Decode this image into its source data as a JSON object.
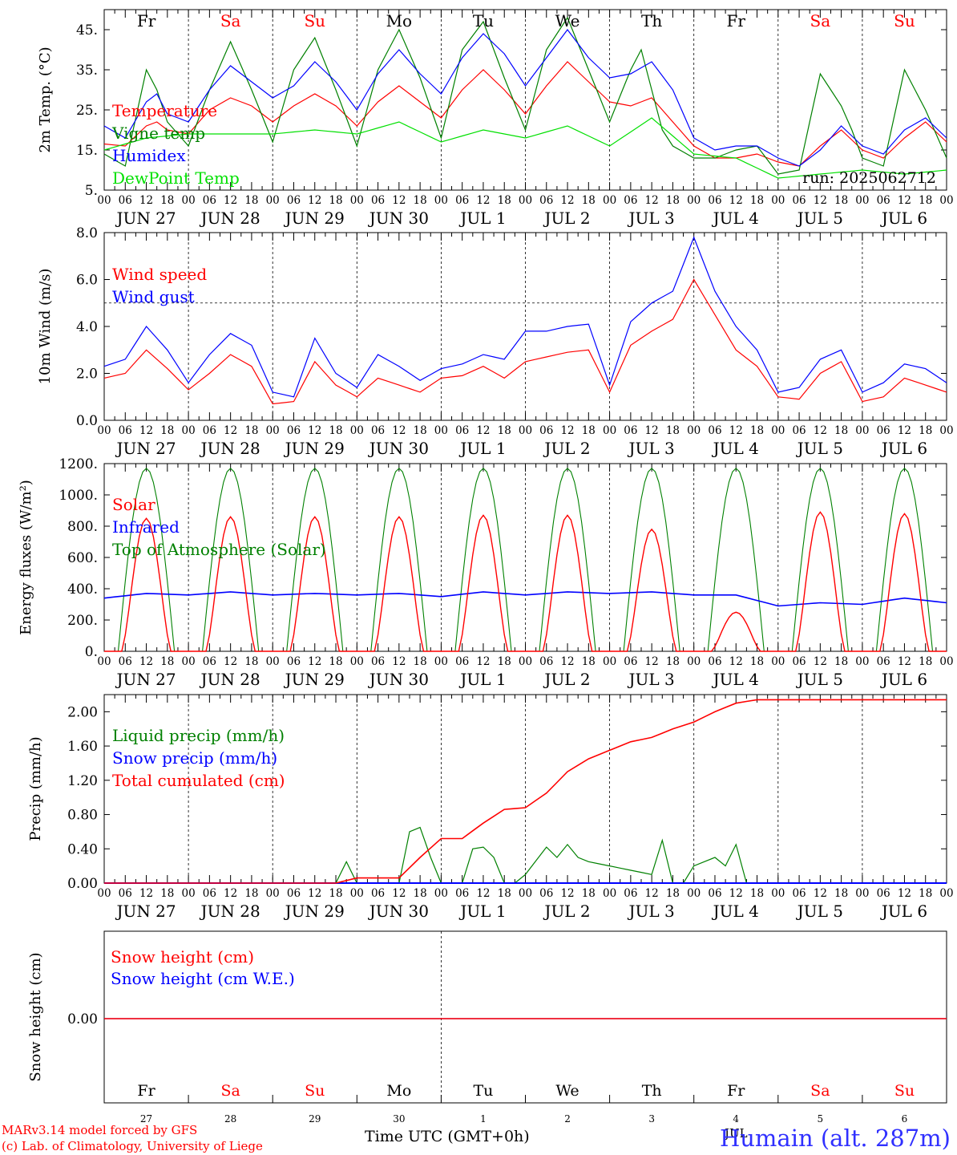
{
  "run_label": "run: 2025062712",
  "x_axis": {
    "hour_ticks": [
      "00",
      "06",
      "12",
      "18"
    ],
    "end_tick": "00",
    "dates": [
      "JUN 27",
      "JUN 28",
      "JUN 29",
      "JUN 30",
      "JUL  1",
      "JUL  2",
      "JUL  3",
      "JUL  4",
      "JUL  5",
      "JUL  6"
    ],
    "weekdays": [
      "Fr",
      "Sa",
      "Su",
      "Mo",
      "Tu",
      "We",
      "Th",
      "Fr",
      "Sa",
      "Su"
    ],
    "weekend_color": "#ff0000",
    "weekday_color": "#000000",
    "bottom_day_numbers": [
      "27",
      "28",
      "29",
      "30",
      "1",
      "2",
      "3",
      "4",
      "5",
      "6"
    ],
    "bottom_month_label": "JUL",
    "title": "Time UTC (GMT+0h)"
  },
  "footer": {
    "credit_line1": "MARv3.14 model forced by GFS",
    "credit_line2": "(c) Lab. of Climatology, University of Liege",
    "station": "Humain (alt. 287m)",
    "credit_color": "#ff0000",
    "station_color": "#3030ff"
  },
  "chart_data": [
    {
      "type": "line",
      "ylabel": "2m Temp. (°C)",
      "ylim": [
        5,
        50
      ],
      "yticks": [
        "5.",
        "15.",
        "25.",
        "35.",
        "45."
      ],
      "x_unit": "hours since JUN 27 00 UTC",
      "xlim": [
        0,
        240
      ],
      "series": [
        {
          "name": "Temperature",
          "color": "#ff0000",
          "x": [
            0,
            6,
            12,
            15,
            18,
            24,
            30,
            36,
            42,
            48,
            54,
            60,
            66,
            72,
            78,
            84,
            90,
            96,
            102,
            108,
            114,
            120,
            126,
            132,
            138,
            144,
            150,
            156,
            162,
            168,
            174,
            180,
            186,
            192,
            198,
            204,
            210,
            216,
            222,
            228,
            234,
            240
          ],
          "values": [
            16.5,
            16,
            21,
            22,
            20,
            19,
            25,
            28,
            26,
            22,
            26,
            29,
            26,
            21,
            27,
            31,
            27,
            23,
            30,
            35,
            30,
            24,
            31,
            37,
            32,
            27,
            26,
            28,
            22,
            16,
            13,
            13,
            14,
            12,
            11,
            16,
            20,
            15,
            13,
            18,
            22,
            17
          ]
        },
        {
          "name": "Vigne temp",
          "color": "#008000",
          "x": [
            0,
            6,
            12,
            15,
            18,
            24,
            30,
            36,
            42,
            48,
            54,
            60,
            66,
            72,
            78,
            84,
            90,
            96,
            102,
            108,
            114,
            120,
            126,
            132,
            138,
            144,
            150,
            153,
            156,
            159,
            162,
            168,
            174,
            180,
            186,
            192,
            198,
            204,
            210,
            213,
            216,
            222,
            228,
            234,
            240
          ],
          "values": [
            14,
            11,
            35,
            30,
            22,
            16,
            30,
            42,
            30,
            17,
            35,
            43,
            30,
            16,
            35,
            45,
            33,
            18,
            40,
            47,
            33,
            20,
            40,
            48,
            35,
            22,
            35,
            40,
            30,
            20,
            16,
            13,
            13,
            15,
            16,
            9,
            10,
            34,
            26,
            20,
            13,
            11,
            35,
            25,
            13
          ]
        },
        {
          "name": "Humidex",
          "color": "#0000ff",
          "x": [
            0,
            6,
            12,
            15,
            18,
            24,
            30,
            36,
            42,
            48,
            54,
            60,
            66,
            72,
            78,
            84,
            90,
            96,
            102,
            108,
            114,
            120,
            126,
            132,
            138,
            144,
            150,
            156,
            162,
            168,
            174,
            180,
            186,
            192,
            198,
            204,
            210,
            216,
            222,
            228,
            234,
            240
          ],
          "values": [
            21,
            18,
            27,
            29,
            24,
            22,
            30,
            36,
            32,
            28,
            31,
            37,
            32,
            25,
            34,
            40,
            34,
            29,
            38,
            44,
            39,
            31,
            38,
            45,
            38,
            33,
            34,
            37,
            30,
            18,
            15,
            16,
            16,
            13,
            11,
            15,
            21,
            16,
            14,
            20,
            23,
            18
          ]
        },
        {
          "name": "DewPoint Temp",
          "color": "#00e000",
          "x": [
            0,
            12,
            24,
            36,
            48,
            60,
            72,
            84,
            96,
            108,
            120,
            132,
            144,
            156,
            168,
            180,
            192,
            204,
            216,
            228,
            240
          ],
          "values": [
            15,
            18,
            19,
            19,
            19,
            20,
            19,
            22,
            17,
            20,
            18,
            21,
            16,
            23,
            14,
            13,
            8,
            9,
            10,
            9,
            10
          ]
        }
      ]
    },
    {
      "type": "line",
      "ylabel": "10m Wind (m/s)",
      "ylim": [
        0,
        8
      ],
      "yticks": [
        "0.0",
        "2.0",
        "4.0",
        "6.0",
        "8.0"
      ],
      "reference_line": 5,
      "xlim": [
        0,
        240
      ],
      "series": [
        {
          "name": "Wind speed",
          "color": "#ff0000",
          "x": [
            0,
            6,
            12,
            18,
            24,
            30,
            36,
            42,
            48,
            54,
            60,
            66,
            72,
            78,
            84,
            90,
            96,
            102,
            108,
            114,
            120,
            126,
            132,
            138,
            144,
            150,
            156,
            162,
            168,
            174,
            180,
            186,
            192,
            198,
            204,
            210,
            216,
            222,
            228,
            234,
            240
          ],
          "values": [
            1.8,
            2.0,
            3.0,
            2.2,
            1.3,
            2.0,
            2.8,
            2.3,
            0.7,
            0.8,
            2.5,
            1.5,
            1.0,
            1.8,
            1.5,
            1.2,
            1.8,
            1.9,
            2.3,
            1.8,
            2.5,
            2.7,
            2.9,
            3.0,
            1.2,
            3.2,
            3.8,
            4.3,
            6.0,
            4.5,
            3.0,
            2.3,
            1.0,
            0.9,
            2.0,
            2.5,
            0.8,
            1.0,
            1.8,
            1.5,
            1.2
          ]
        },
        {
          "name": "Wind gust",
          "color": "#0000ff",
          "x": [
            0,
            6,
            12,
            18,
            24,
            30,
            36,
            42,
            48,
            54,
            60,
            66,
            72,
            78,
            84,
            90,
            96,
            102,
            108,
            114,
            120,
            126,
            132,
            138,
            144,
            150,
            156,
            162,
            168,
            174,
            180,
            186,
            192,
            198,
            204,
            210,
            216,
            222,
            228,
            234,
            240
          ],
          "values": [
            2.3,
            2.6,
            4.0,
            3.0,
            1.6,
            2.8,
            3.7,
            3.2,
            1.2,
            1.0,
            3.5,
            2.0,
            1.4,
            2.8,
            2.3,
            1.7,
            2.2,
            2.4,
            2.8,
            2.6,
            3.8,
            3.8,
            4.0,
            4.1,
            1.5,
            4.2,
            5.0,
            5.5,
            7.8,
            5.5,
            4.0,
            3.0,
            1.2,
            1.4,
            2.6,
            3.0,
            1.2,
            1.6,
            2.4,
            2.2,
            1.6
          ]
        }
      ]
    },
    {
      "type": "line",
      "ylabel": "Energy fluxes (W/m²)",
      "ylim": [
        0,
        1200
      ],
      "yticks": [
        "0.",
        "200.",
        "400.",
        "600.",
        "800.",
        "1000.",
        "1200."
      ],
      "xlim": [
        0,
        240
      ],
      "daily_toa_peak": 1170,
      "daily_solar_peak": [
        850,
        860,
        860,
        860,
        870,
        870,
        780,
        250,
        890,
        880
      ],
      "series": [
        {
          "name": "Solar",
          "color": "#ff0000"
        },
        {
          "name": "Infrared",
          "color": "#0000ff",
          "x": [
            0,
            12,
            24,
            36,
            48,
            60,
            72,
            84,
            96,
            108,
            120,
            132,
            144,
            156,
            168,
            180,
            192,
            204,
            216,
            228,
            240
          ],
          "values": [
            340,
            370,
            360,
            380,
            360,
            370,
            360,
            370,
            350,
            380,
            360,
            380,
            370,
            380,
            360,
            360,
            290,
            310,
            300,
            340,
            310
          ]
        },
        {
          "name": "Top of Atmosphere (Solar)",
          "color": "#008000"
        }
      ]
    },
    {
      "type": "line",
      "ylabel": "Precip (mm/h)",
      "ylim": [
        0,
        2.2
      ],
      "yticks": [
        "0.00",
        "0.40",
        "0.80",
        "1.20",
        "1.60",
        "2.00"
      ],
      "xlim": [
        0,
        240
      ],
      "series": [
        {
          "name": "Liquid precip (mm/h)",
          "color": "#008000",
          "x": [
            0,
            66,
            69,
            72,
            84,
            87,
            90,
            93,
            96,
            102,
            105,
            108,
            111,
            114,
            117,
            120,
            126,
            129,
            132,
            135,
            138,
            144,
            150,
            156,
            159,
            162,
            165,
            168,
            174,
            177,
            180,
            183,
            186,
            240
          ],
          "values": [
            0,
            0,
            0.25,
            0,
            0,
            0.6,
            0.65,
            0.3,
            0,
            0,
            0.4,
            0.42,
            0.3,
            0,
            0,
            0.1,
            0.42,
            0.3,
            0.45,
            0.3,
            0.25,
            0.2,
            0.15,
            0.1,
            0.5,
            0,
            0,
            0.2,
            0.3,
            0.2,
            0.45,
            0,
            0,
            0
          ]
        },
        {
          "name": "Snow precip (mm/h)",
          "color": "#0000ff",
          "x": [
            0,
            240
          ],
          "values": [
            0,
            0
          ]
        },
        {
          "name": "Total cumulated (cm)",
          "color": "#ff0000",
          "x": [
            0,
            66,
            72,
            84,
            90,
            96,
            102,
            108,
            114,
            120,
            126,
            132,
            138,
            144,
            150,
            156,
            162,
            168,
            174,
            180,
            186,
            240
          ],
          "values": [
            0,
            0,
            0.06,
            0.06,
            0.3,
            0.52,
            0.52,
            0.7,
            0.86,
            0.88,
            1.05,
            1.3,
            1.45,
            1.55,
            1.65,
            1.7,
            1.8,
            1.88,
            2.0,
            2.1,
            2.14,
            2.14
          ]
        }
      ]
    },
    {
      "type": "line",
      "ylabel": "Snow height (cm)",
      "yticks": [
        "0.00"
      ],
      "xlim": [
        0,
        240
      ],
      "series": [
        {
          "name": "Snow height (cm)",
          "color": "#ff0000",
          "x": [
            0,
            240
          ],
          "values": [
            0,
            0
          ]
        },
        {
          "name": "Snow height (cm W.E.)",
          "color": "#0000ff",
          "x": [
            0,
            240
          ],
          "values": [
            0,
            0
          ]
        }
      ]
    }
  ]
}
